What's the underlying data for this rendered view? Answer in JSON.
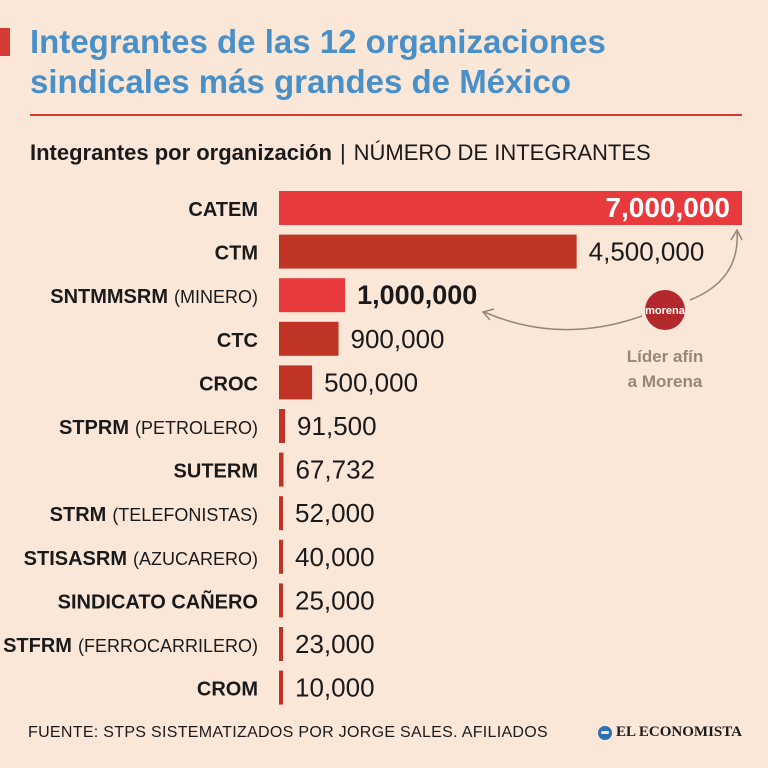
{
  "header": {
    "title": "Integrantes de las 12 organizaciones sindicales más grandes de México",
    "subtitle": "Integrantes por organización",
    "unit": "NÚMERO DE INTEGRANTES"
  },
  "chart_data": {
    "type": "bar",
    "orientation": "horizontal",
    "categories": [
      {
        "name": "CATEM",
        "suffix": ""
      },
      {
        "name": "CTM",
        "suffix": ""
      },
      {
        "name": "SNTMMSRM",
        "suffix": "(MINERO)"
      },
      {
        "name": "CTC",
        "suffix": ""
      },
      {
        "name": "CROC",
        "suffix": ""
      },
      {
        "name": "STPRM",
        "suffix": "(PETROLERO)"
      },
      {
        "name": "SUTERM",
        "suffix": ""
      },
      {
        "name": "STRM",
        "suffix": "(TELEFONISTAS)"
      },
      {
        "name": "STISASRM",
        "suffix": "(AZUCARERO)"
      },
      {
        "name": "SINDICATO CAÑERO",
        "suffix": ""
      },
      {
        "name": "STFRM",
        "suffix": "(FERROCARRILERO)"
      },
      {
        "name": "CROM",
        "suffix": ""
      }
    ],
    "values": [
      7000000,
      4500000,
      1000000,
      900000,
      500000,
      91500,
      67732,
      52000,
      40000,
      25000,
      23000,
      10000
    ],
    "value_labels": [
      "7,000,000",
      "4,500,000",
      "1,000,000",
      "900,000",
      "500,000",
      "91,500",
      "67,732",
      "52,000",
      "40,000",
      "25,000",
      "23,000",
      "10,000"
    ],
    "highlighted": [
      0,
      2
    ],
    "xlim": [
      0,
      7000000
    ],
    "annotation": {
      "badge": "morena",
      "text_line1": "Líder afín",
      "text_line2": "a Morena"
    },
    "colors": {
      "bar": "#c03425",
      "bar_highlight": "#e8393c",
      "annotation_text": "#9a8478",
      "arrow": "#9a8478"
    }
  },
  "footer": {
    "source": "FUENTE: STPS SISTEMATIZADOS POR JORGE SALES. AFILIADOS",
    "brand": "EL ECONOMISTA"
  }
}
